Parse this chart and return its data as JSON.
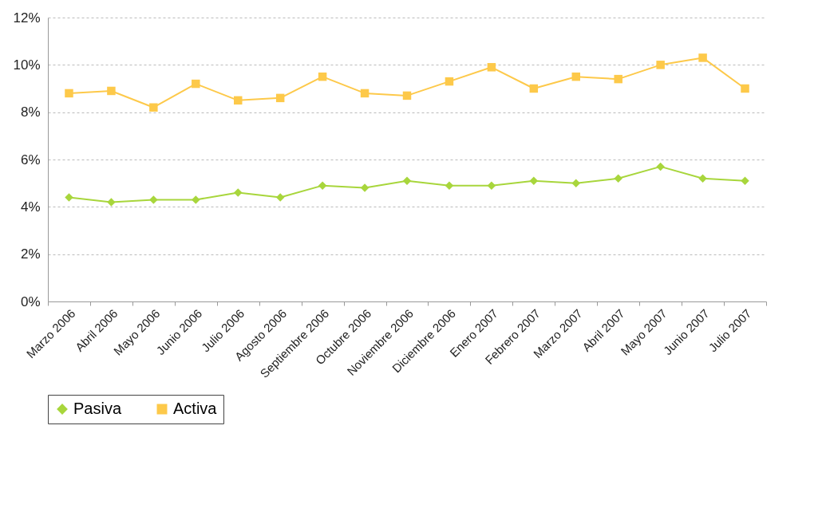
{
  "chart_data": {
    "type": "line",
    "categories": [
      "Marzo 2006",
      "Abril 2006",
      "Mayo 2006",
      "Junio 2006",
      "Julio 2006",
      "Agosto 2006",
      "Septiembre 2006",
      "Octubre 2006",
      "Noviembre 2006",
      "Diciembre 2006",
      "Enero 2007",
      "Febrero 2007",
      "Marzo 2007",
      "Abril 2007",
      "Mayo 2007",
      "Junio 2007",
      "Julio 2007"
    ],
    "series": [
      {
        "name": "Pasiva",
        "color": "#a8d63c",
        "marker": "diamond",
        "values": [
          4.4,
          4.2,
          4.3,
          4.3,
          4.6,
          4.4,
          4.9,
          4.8,
          5.1,
          4.9,
          4.9,
          5.1,
          5.0,
          5.2,
          5.7,
          5.2,
          5.1
        ]
      },
      {
        "name": "Activa",
        "color": "#fdc94a",
        "marker": "square",
        "values": [
          8.8,
          8.9,
          8.2,
          9.2,
          8.5,
          8.6,
          9.5,
          8.8,
          8.7,
          9.3,
          9.9,
          9.0,
          9.5,
          9.4,
          10.0,
          10.3,
          9.0
        ]
      }
    ],
    "ylim": [
      0,
      12
    ],
    "yticks": [
      {
        "value": 0,
        "label": "0%"
      },
      {
        "value": 2,
        "label": "2%"
      },
      {
        "value": 4,
        "label": "4%"
      },
      {
        "value": 6,
        "label": "6%"
      },
      {
        "value": 8,
        "label": "8%"
      },
      {
        "value": 10,
        "label": "10%"
      },
      {
        "value": 12,
        "label": "12%"
      }
    ],
    "grid": "y",
    "legend": "bottom"
  }
}
